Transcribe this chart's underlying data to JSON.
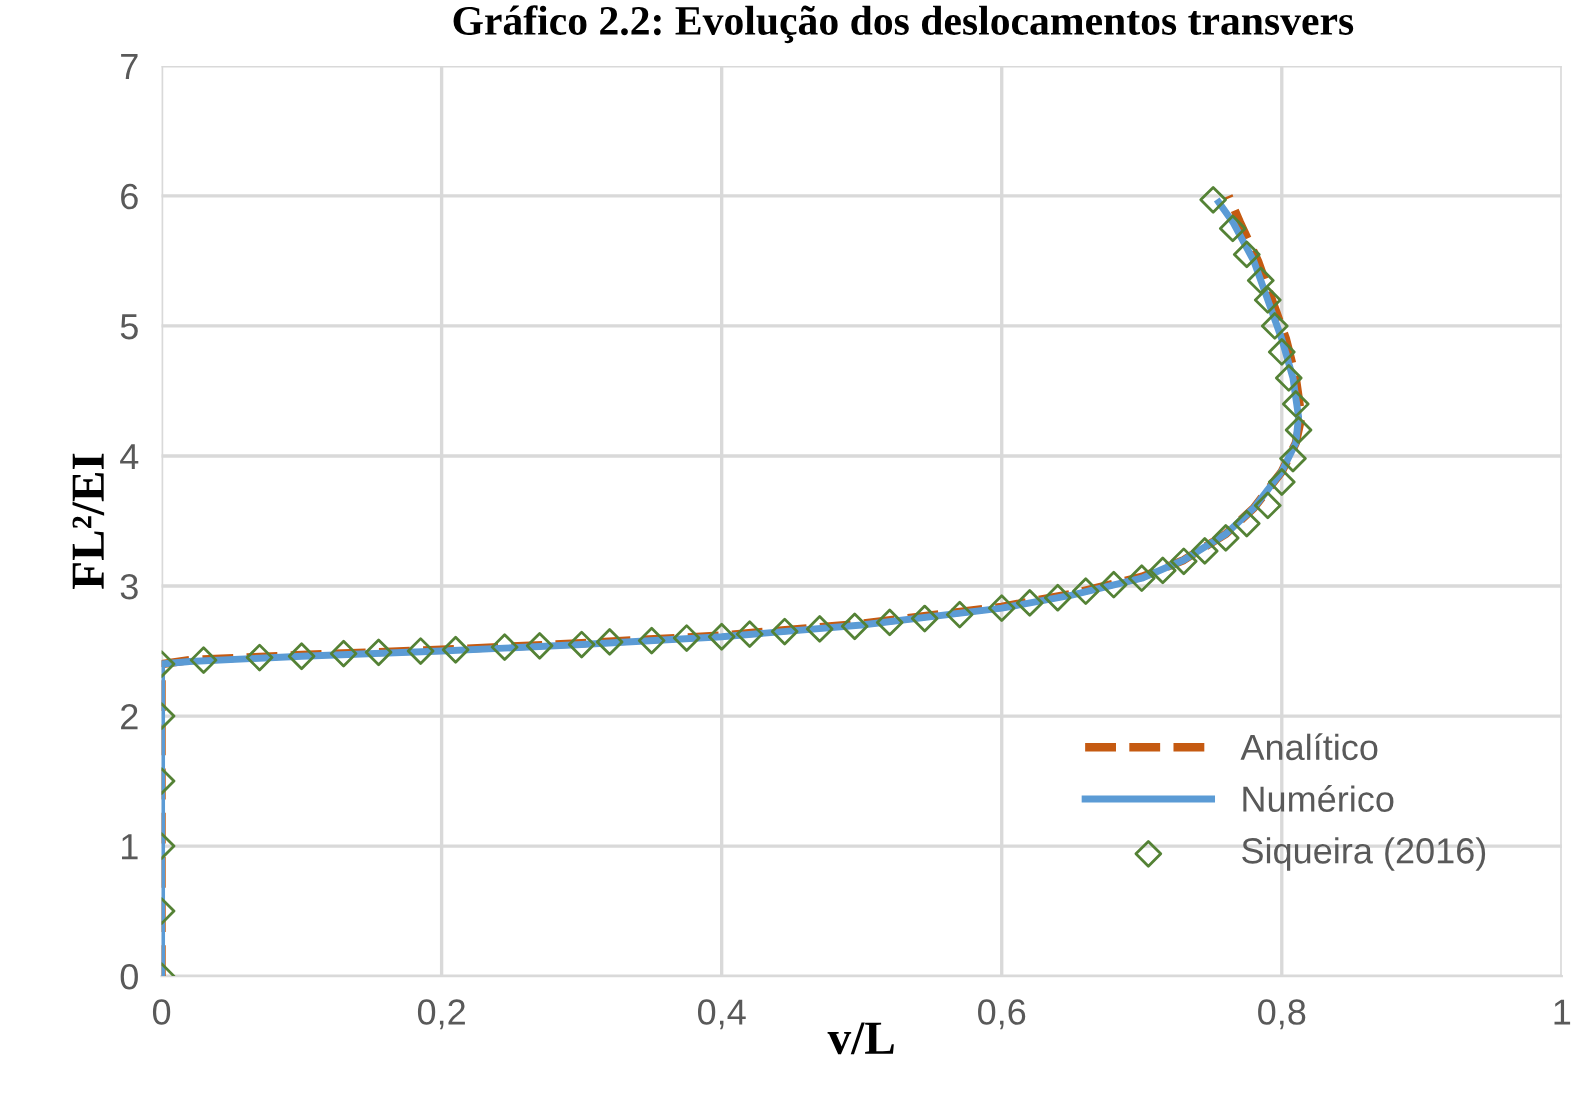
{
  "chart_data": {
    "type": "line",
    "title": "Gráfico 2.2: Evolução dos deslocamentos transvers",
    "xlabel": "v/L",
    "ylabel": "FL²/EI",
    "xlim": [
      0,
      1
    ],
    "ylim": [
      0,
      7
    ],
    "xticks": [
      0,
      {
        "value": 0.2,
        "label": "0,2"
      },
      {
        "value": 0.4,
        "label": "0,4"
      },
      {
        "value": 0.6,
        "label": "0,6"
      },
      {
        "value": 0.8,
        "label": "0,8"
      },
      1
    ],
    "yticks": [
      0,
      1,
      2,
      3,
      4,
      5,
      6,
      7
    ],
    "grid": true,
    "legend": "bottom right",
    "series": [
      {
        "name": "Analítico",
        "color": "#c55a11",
        "line_style": "dashed",
        "marker": "none",
        "x": [
          0,
          0,
          0.02,
          0.1,
          0.2,
          0.3,
          0.4,
          0.5,
          0.6,
          0.65,
          0.7,
          0.73,
          0.76,
          0.78,
          0.8,
          0.81,
          0.814,
          0.81,
          0.803,
          0.793,
          0.783,
          0.77,
          0.762
        ],
        "values": [
          0,
          2.4,
          2.43,
          2.47,
          2.51,
          2.56,
          2.62,
          2.71,
          2.84,
          2.94,
          3.07,
          3.2,
          3.4,
          3.6,
          3.88,
          4.1,
          4.3,
          4.6,
          4.9,
          5.2,
          5.5,
          5.8,
          6.0
        ]
      },
      {
        "name": "Numérico",
        "color": "#5b9bd5",
        "line_style": "solid",
        "marker": "none",
        "x": [
          0,
          0,
          0.02,
          0.1,
          0.2,
          0.3,
          0.4,
          0.5,
          0.6,
          0.65,
          0.7,
          0.73,
          0.76,
          0.78,
          0.8,
          0.81,
          0.812,
          0.808,
          0.8,
          0.79,
          0.78,
          0.765,
          0.755
        ],
        "values": [
          0,
          2.4,
          2.42,
          2.46,
          2.5,
          2.55,
          2.61,
          2.7,
          2.83,
          2.93,
          3.06,
          3.2,
          3.4,
          3.6,
          3.88,
          4.1,
          4.3,
          4.6,
          4.9,
          5.2,
          5.5,
          5.8,
          5.95
        ]
      },
      {
        "name": "Siqueira (2016)",
        "type": "scatter",
        "color": "#548235",
        "marker": "diamond",
        "x": [
          0,
          0,
          0,
          0,
          0,
          0,
          0.03,
          0.07,
          0.1,
          0.13,
          0.155,
          0.185,
          0.21,
          0.245,
          0.27,
          0.3,
          0.32,
          0.35,
          0.375,
          0.4,
          0.42,
          0.445,
          0.47,
          0.495,
          0.52,
          0.545,
          0.57,
          0.6,
          0.62,
          0.64,
          0.66,
          0.68,
          0.7,
          0.715,
          0.73,
          0.745,
          0.76,
          0.775,
          0.79,
          0.8,
          0.808,
          0.812,
          0.81,
          0.805,
          0.8,
          0.795,
          0.79,
          0.785,
          0.775,
          0.765,
          0.751
        ],
        "values": [
          0,
          0.5,
          1,
          1.5,
          2,
          2.4,
          2.43,
          2.45,
          2.46,
          2.48,
          2.49,
          2.5,
          2.51,
          2.53,
          2.54,
          2.55,
          2.57,
          2.58,
          2.6,
          2.61,
          2.63,
          2.65,
          2.67,
          2.69,
          2.72,
          2.75,
          2.78,
          2.83,
          2.87,
          2.91,
          2.96,
          3.01,
          3.06,
          3.12,
          3.19,
          3.27,
          3.37,
          3.48,
          3.62,
          3.8,
          3.98,
          4.2,
          4.4,
          4.6,
          4.8,
          5.0,
          5.2,
          5.35,
          5.55,
          5.75,
          5.97
        ]
      }
    ]
  }
}
